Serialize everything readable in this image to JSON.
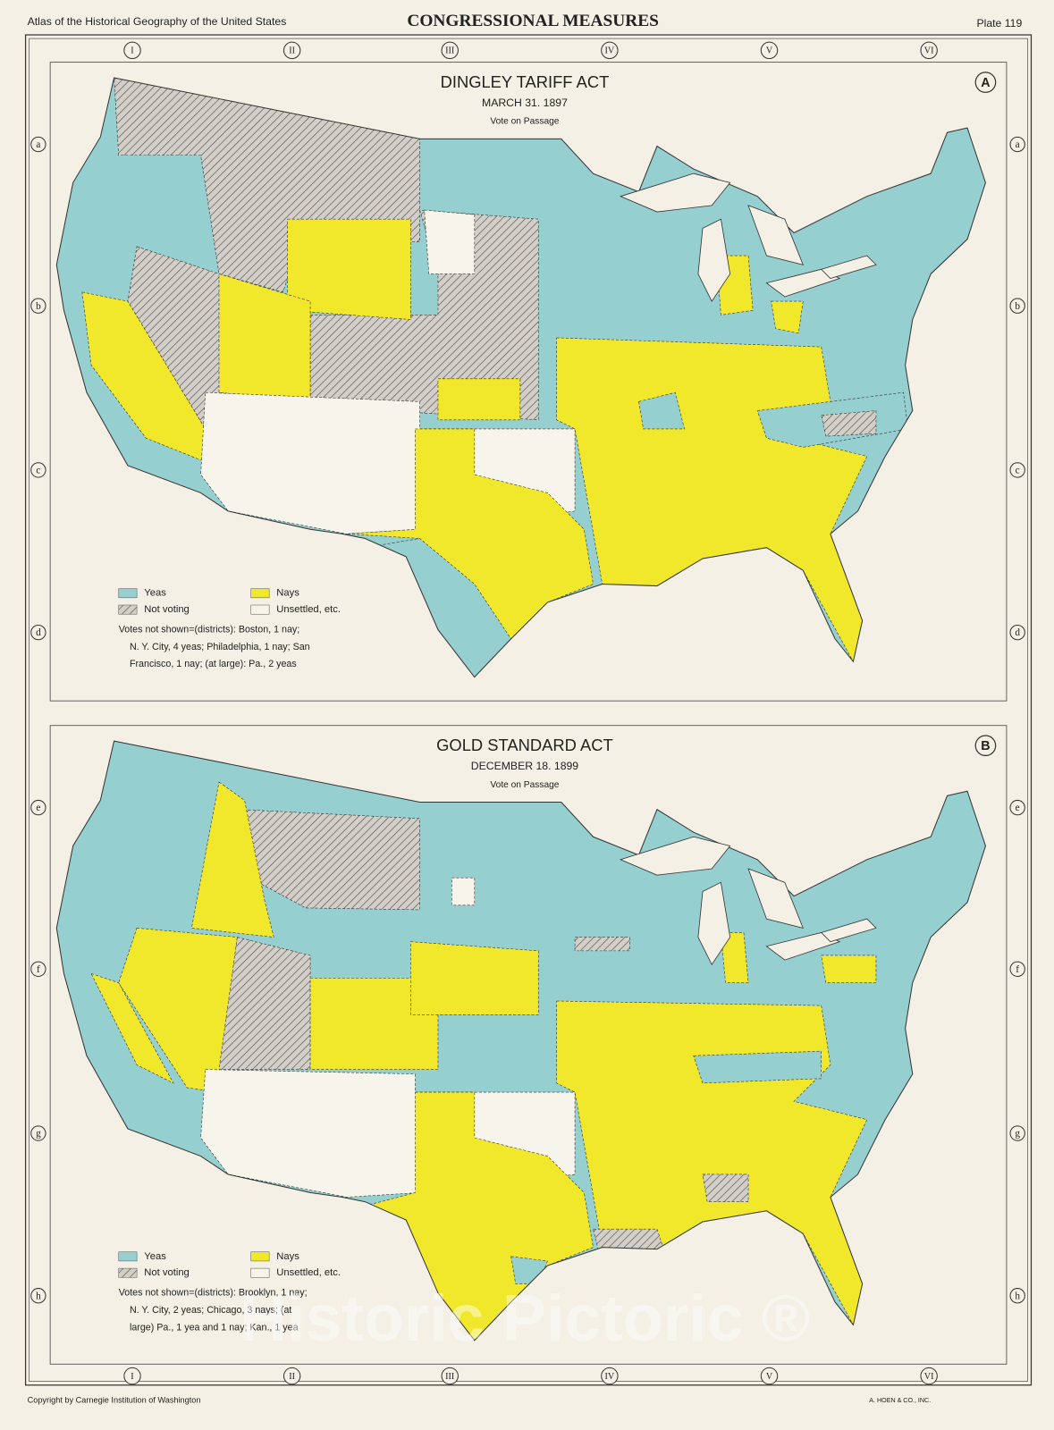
{
  "header": {
    "left": "Atlas of the Historical Geography of the United States",
    "title": "CONGRESSIONAL MEASURES",
    "plate": "Plate 119"
  },
  "columns": [
    "I",
    "II",
    "III",
    "IV",
    "V",
    "VI"
  ],
  "maps": [
    {
      "letter": "A",
      "title": "DINGLEY TARIFF ACT",
      "date": "MARCH 31. 1897",
      "subtitle": "Vote on Passage",
      "rows": [
        "a",
        "b",
        "c",
        "d"
      ],
      "legend": {
        "yeas": "Yeas",
        "not_voting": "Not voting",
        "nays": "Nays",
        "unsettled": "Unsettled, etc."
      },
      "note": [
        "Votes not shown=(districts): Boston, 1 nay;",
        "N. Y. City, 4 yeas; Philadelphia, 1 nay; San",
        "Francisco, 1 nay; (at large): Pa., 2 yeas"
      ]
    },
    {
      "letter": "B",
      "title": "GOLD STANDARD ACT",
      "date": "DECEMBER 18. 1899",
      "subtitle": "Vote on Passage",
      "rows": [
        "e",
        "f",
        "g",
        "h"
      ],
      "legend": {
        "yeas": "Yeas",
        "not_voting": "Not voting",
        "nays": "Nays",
        "unsettled": "Unsettled, etc."
      },
      "note": [
        "Votes not shown=(districts): Brooklyn, 1 nay;",
        "N. Y. City, 2 yeas; Chicago, 3 nays; (at",
        "large) Pa., 1 yea and 1 nay; Kan., 1 yea"
      ]
    }
  ],
  "watermark": "Historic Pictoric ®",
  "footer": {
    "left": "Copyright by Carnegie Institution of Washington",
    "right": "A. HOEN & CO., INC."
  }
}
